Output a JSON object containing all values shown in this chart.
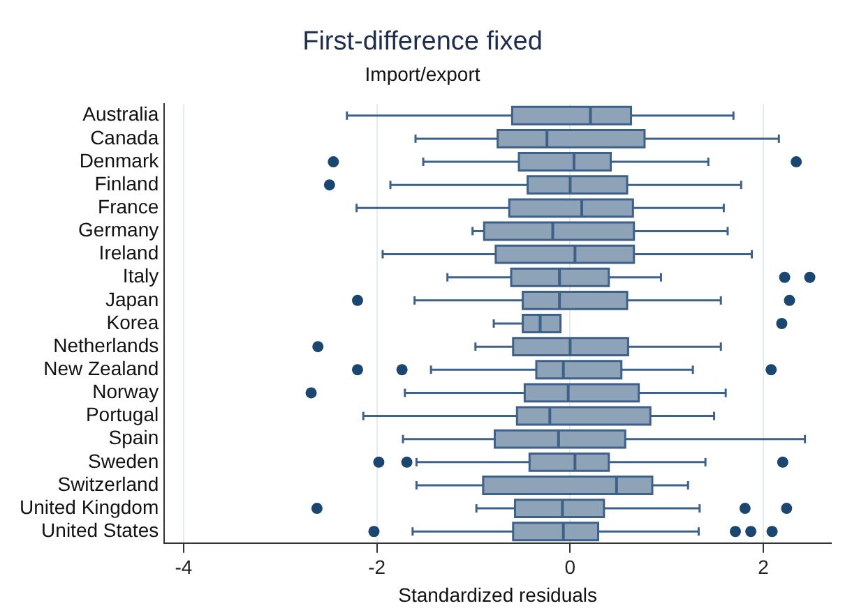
{
  "chart_data": {
    "type": "box",
    "title": "First-difference fixed",
    "subtitle": "Import/export",
    "xlabel": "Standardized residuals",
    "orientation": "horizontal",
    "categories": [
      "Australia",
      "Canada",
      "Denmark",
      "Finland",
      "France",
      "Germany",
      "Ireland",
      "Italy",
      "Japan",
      "Korea",
      "Netherlands",
      "New Zealand",
      "Norway",
      "Portugal",
      "Spain",
      "Sweden",
      "Switzerland",
      "United Kingdom",
      "United States"
    ],
    "color": "#8fa3b8",
    "grid": "x",
    "legend": false,
    "xlim": [
      -4.2,
      2.7
    ],
    "xticks": [
      -4,
      -2,
      0,
      2
    ],
    "boxes": [
      {
        "low": -2.31,
        "q1": -0.6,
        "median": 0.21,
        "q3": 0.63,
        "high": 1.69
      },
      {
        "low": -1.6,
        "q1": -0.75,
        "median": -0.24,
        "q3": 0.77,
        "high": 2.16
      },
      {
        "low": -1.52,
        "q1": -0.53,
        "median": 0.04,
        "q3": 0.42,
        "high": 1.43,
        "outliers": [
          -2.45,
          2.34
        ]
      },
      {
        "low": -1.86,
        "q1": -0.44,
        "median": 0,
        "q3": 0.59,
        "high": 1.77,
        "outliers": [
          -2.49
        ]
      },
      {
        "low": -2.21,
        "q1": -0.63,
        "median": 0.12,
        "q3": 0.65,
        "high": 1.59
      },
      {
        "low": -1.01,
        "q1": -0.89,
        "median": -0.18,
        "q3": 0.66,
        "high": 1.63
      },
      {
        "low": -1.94,
        "q1": -0.77,
        "median": 0.05,
        "q3": 0.66,
        "high": 1.88
      },
      {
        "low": -1.27,
        "q1": -0.61,
        "median": -0.11,
        "q3": 0.4,
        "high": 0.94,
        "outliers": [
          2.22,
          2.48
        ]
      },
      {
        "low": -1.61,
        "q1": -0.49,
        "median": -0.11,
        "q3": 0.59,
        "high": 1.56,
        "outliers": [
          -2.2,
          2.27
        ]
      },
      {
        "low": -0.79,
        "q1": -0.49,
        "median": -0.31,
        "q3": -0.1,
        "high": -0.1,
        "outliers": [
          2.19
        ]
      },
      {
        "low": -0.98,
        "q1": -0.59,
        "median": 0,
        "q3": 0.6,
        "high": 1.56,
        "outliers": [
          -2.61
        ]
      },
      {
        "low": -1.44,
        "q1": -0.35,
        "median": -0.07,
        "q3": 0.53,
        "high": 1.27,
        "outliers": [
          -2.2,
          -1.74,
          2.08
        ]
      },
      {
        "low": -1.71,
        "q1": -0.47,
        "median": -0.02,
        "q3": 0.71,
        "high": 1.61,
        "outliers": [
          -2.68
        ]
      },
      {
        "low": -2.14,
        "q1": -0.55,
        "median": -0.21,
        "q3": 0.83,
        "high": 1.49
      },
      {
        "low": -1.73,
        "q1": -0.78,
        "median": -0.12,
        "q3": 0.57,
        "high": 2.43
      },
      {
        "low": -1.59,
        "q1": -0.42,
        "median": 0.05,
        "q3": 0.4,
        "high": 1.4,
        "outliers": [
          -1.98,
          -1.69,
          2.2
        ]
      },
      {
        "low": -1.59,
        "q1": -0.9,
        "median": 0.48,
        "q3": 0.85,
        "high": 1.22
      },
      {
        "low": -0.97,
        "q1": -0.57,
        "median": -0.08,
        "q3": 0.35,
        "high": 1.34,
        "outliers": [
          -2.62,
          1.81,
          2.24
        ]
      },
      {
        "low": -1.63,
        "q1": -0.59,
        "median": -0.07,
        "q3": 0.29,
        "high": 1.33,
        "outliers": [
          -2.03,
          1.71,
          1.87,
          2.09
        ]
      }
    ]
  }
}
